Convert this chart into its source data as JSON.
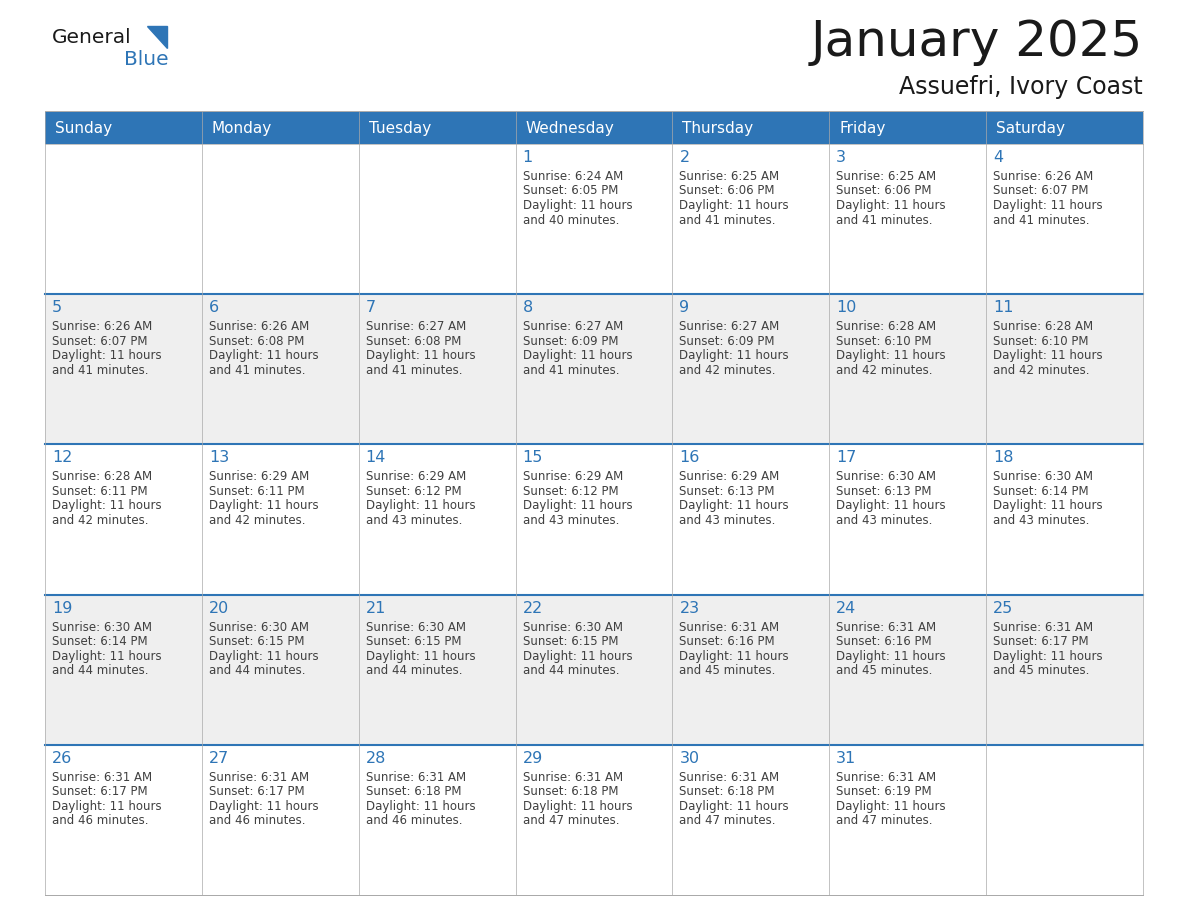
{
  "title": "January 2025",
  "subtitle": "Assuefri, Ivory Coast",
  "days_of_week": [
    "Sunday",
    "Monday",
    "Tuesday",
    "Wednesday",
    "Thursday",
    "Friday",
    "Saturday"
  ],
  "header_bg": "#2E75B6",
  "header_text": "#FFFFFF",
  "cell_bg_white": "#FFFFFF",
  "cell_bg_gray": "#EFEFEF",
  "cell_border_color": "#2E75B6",
  "cell_inner_border": "#CCCCCC",
  "day_num_color": "#2E75B6",
  "text_color": "#404040",
  "logo_general_color": "#1a1a1a",
  "logo_blue_color": "#2E75B6",
  "fig_width": 11.88,
  "fig_height": 9.18,
  "dpi": 100,
  "calendar_data": [
    [
      null,
      null,
      null,
      {
        "day": 1,
        "sunrise": "6:24 AM",
        "sunset": "6:05 PM",
        "daylight": "11 hours and 40 minutes."
      },
      {
        "day": 2,
        "sunrise": "6:25 AM",
        "sunset": "6:06 PM",
        "daylight": "11 hours and 41 minutes."
      },
      {
        "day": 3,
        "sunrise": "6:25 AM",
        "sunset": "6:06 PM",
        "daylight": "11 hours and 41 minutes."
      },
      {
        "day": 4,
        "sunrise": "6:26 AM",
        "sunset": "6:07 PM",
        "daylight": "11 hours and 41 minutes."
      }
    ],
    [
      {
        "day": 5,
        "sunrise": "6:26 AM",
        "sunset": "6:07 PM",
        "daylight": "11 hours and 41 minutes."
      },
      {
        "day": 6,
        "sunrise": "6:26 AM",
        "sunset": "6:08 PM",
        "daylight": "11 hours and 41 minutes."
      },
      {
        "day": 7,
        "sunrise": "6:27 AM",
        "sunset": "6:08 PM",
        "daylight": "11 hours and 41 minutes."
      },
      {
        "day": 8,
        "sunrise": "6:27 AM",
        "sunset": "6:09 PM",
        "daylight": "11 hours and 41 minutes."
      },
      {
        "day": 9,
        "sunrise": "6:27 AM",
        "sunset": "6:09 PM",
        "daylight": "11 hours and 42 minutes."
      },
      {
        "day": 10,
        "sunrise": "6:28 AM",
        "sunset": "6:10 PM",
        "daylight": "11 hours and 42 minutes."
      },
      {
        "day": 11,
        "sunrise": "6:28 AM",
        "sunset": "6:10 PM",
        "daylight": "11 hours and 42 minutes."
      }
    ],
    [
      {
        "day": 12,
        "sunrise": "6:28 AM",
        "sunset": "6:11 PM",
        "daylight": "11 hours and 42 minutes."
      },
      {
        "day": 13,
        "sunrise": "6:29 AM",
        "sunset": "6:11 PM",
        "daylight": "11 hours and 42 minutes."
      },
      {
        "day": 14,
        "sunrise": "6:29 AM",
        "sunset": "6:12 PM",
        "daylight": "11 hours and 43 minutes."
      },
      {
        "day": 15,
        "sunrise": "6:29 AM",
        "sunset": "6:12 PM",
        "daylight": "11 hours and 43 minutes."
      },
      {
        "day": 16,
        "sunrise": "6:29 AM",
        "sunset": "6:13 PM",
        "daylight": "11 hours and 43 minutes."
      },
      {
        "day": 17,
        "sunrise": "6:30 AM",
        "sunset": "6:13 PM",
        "daylight": "11 hours and 43 minutes."
      },
      {
        "day": 18,
        "sunrise": "6:30 AM",
        "sunset": "6:14 PM",
        "daylight": "11 hours and 43 minutes."
      }
    ],
    [
      {
        "day": 19,
        "sunrise": "6:30 AM",
        "sunset": "6:14 PM",
        "daylight": "11 hours and 44 minutes."
      },
      {
        "day": 20,
        "sunrise": "6:30 AM",
        "sunset": "6:15 PM",
        "daylight": "11 hours and 44 minutes."
      },
      {
        "day": 21,
        "sunrise": "6:30 AM",
        "sunset": "6:15 PM",
        "daylight": "11 hours and 44 minutes."
      },
      {
        "day": 22,
        "sunrise": "6:30 AM",
        "sunset": "6:15 PM",
        "daylight": "11 hours and 44 minutes."
      },
      {
        "day": 23,
        "sunrise": "6:31 AM",
        "sunset": "6:16 PM",
        "daylight": "11 hours and 45 minutes."
      },
      {
        "day": 24,
        "sunrise": "6:31 AM",
        "sunset": "6:16 PM",
        "daylight": "11 hours and 45 minutes."
      },
      {
        "day": 25,
        "sunrise": "6:31 AM",
        "sunset": "6:17 PM",
        "daylight": "11 hours and 45 minutes."
      }
    ],
    [
      {
        "day": 26,
        "sunrise": "6:31 AM",
        "sunset": "6:17 PM",
        "daylight": "11 hours and 46 minutes."
      },
      {
        "day": 27,
        "sunrise": "6:31 AM",
        "sunset": "6:17 PM",
        "daylight": "11 hours and 46 minutes."
      },
      {
        "day": 28,
        "sunrise": "6:31 AM",
        "sunset": "6:18 PM",
        "daylight": "11 hours and 46 minutes."
      },
      {
        "day": 29,
        "sunrise": "6:31 AM",
        "sunset": "6:18 PM",
        "daylight": "11 hours and 47 minutes."
      },
      {
        "day": 30,
        "sunrise": "6:31 AM",
        "sunset": "6:18 PM",
        "daylight": "11 hours and 47 minutes."
      },
      {
        "day": 31,
        "sunrise": "6:31 AM",
        "sunset": "6:19 PM",
        "daylight": "11 hours and 47 minutes."
      },
      null
    ]
  ]
}
